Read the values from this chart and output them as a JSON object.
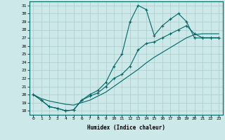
{
  "xlabel": "Humidex (Indice chaleur)",
  "bg_color": "#cce8e8",
  "line_color": "#006666",
  "grid_color": "#b0d0d0",
  "xlim": [
    -0.5,
    23.5
  ],
  "ylim": [
    17.5,
    31.5
  ],
  "xticks": [
    0,
    1,
    2,
    3,
    4,
    5,
    6,
    7,
    8,
    9,
    10,
    11,
    12,
    13,
    14,
    15,
    16,
    17,
    18,
    19,
    20,
    21,
    22,
    23
  ],
  "yticks": [
    18,
    19,
    20,
    21,
    22,
    23,
    24,
    25,
    26,
    27,
    28,
    29,
    30,
    31
  ],
  "line1_x": [
    0,
    1,
    2,
    3,
    4,
    5,
    6,
    7,
    8,
    9,
    10,
    11,
    12,
    13,
    14,
    15,
    16,
    17,
    18,
    19,
    20,
    21,
    22,
    23
  ],
  "line1_y": [
    20.0,
    19.3,
    18.5,
    18.3,
    18.0,
    18.1,
    19.3,
    20.0,
    20.5,
    21.5,
    23.5,
    25.0,
    29.0,
    31.0,
    30.5,
    27.3,
    28.5,
    29.3,
    30.0,
    29.0,
    27.0,
    27.0,
    27.0,
    27.0
  ],
  "line2_x": [
    0,
    1,
    2,
    3,
    4,
    5,
    6,
    7,
    8,
    9,
    10,
    11,
    12,
    13,
    14,
    15,
    16,
    17,
    18,
    19,
    20,
    21,
    22,
    23
  ],
  "line2_y": [
    20.0,
    19.3,
    18.5,
    18.3,
    18.0,
    18.1,
    19.3,
    19.8,
    20.2,
    21.0,
    22.0,
    22.5,
    23.5,
    25.5,
    26.3,
    26.5,
    27.0,
    27.5,
    28.0,
    28.5,
    27.5,
    27.0,
    27.0,
    27.0
  ],
  "line3_x": [
    0,
    1,
    2,
    3,
    4,
    5,
    6,
    7,
    8,
    9,
    10,
    11,
    12,
    13,
    14,
    15,
    16,
    17,
    18,
    19,
    20,
    21,
    22,
    23
  ],
  "line3_y": [
    20.0,
    19.5,
    19.2,
    19.0,
    18.8,
    18.7,
    19.0,
    19.3,
    19.8,
    20.3,
    21.0,
    21.7,
    22.4,
    23.1,
    23.9,
    24.6,
    25.2,
    25.8,
    26.4,
    27.0,
    27.4,
    27.5,
    27.5,
    27.5
  ]
}
